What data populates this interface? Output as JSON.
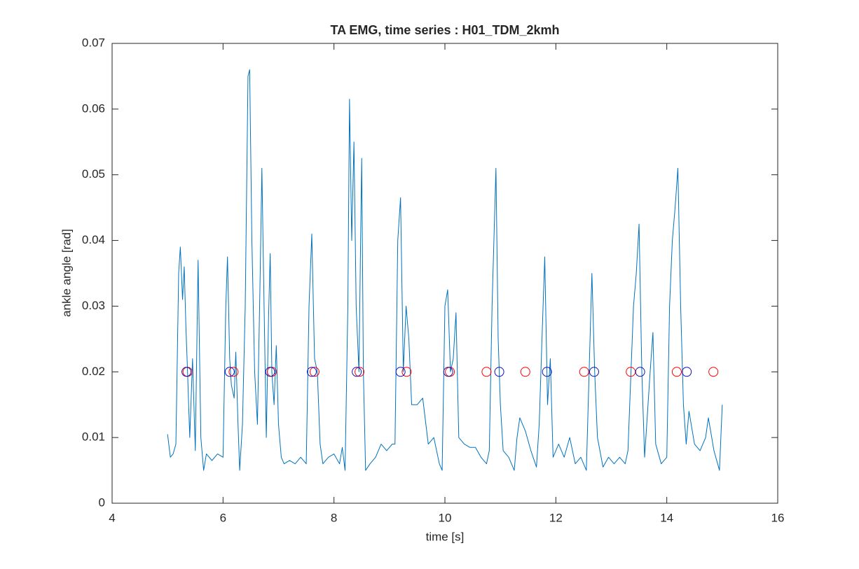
{
  "chart_data": {
    "type": "line",
    "title": "TA EMG, time series : H01_TDM_2kmh",
    "x_label": "time [s]",
    "y_label": "ankle angle [rad]",
    "xlim": [
      4,
      16
    ],
    "xticks": [
      4,
      6,
      8,
      10,
      12,
      14,
      16
    ],
    "ylim": [
      0,
      0.07
    ],
    "yticks": [
      0,
      0.01,
      0.02,
      0.03,
      0.04,
      0.05,
      0.06,
      0.07
    ],
    "grid": false,
    "series": [
      {
        "color": "#0072bd",
        "marker": "none",
        "x": [
          5.0,
          5.05,
          5.1,
          5.15,
          5.2,
          5.23,
          5.27,
          5.3,
          5.33,
          5.36,
          5.4,
          5.45,
          5.5,
          5.55,
          5.6,
          5.65,
          5.7,
          5.8,
          5.9,
          6.0,
          6.05,
          6.08,
          6.12,
          6.15,
          6.2,
          6.23,
          6.27,
          6.3,
          6.35,
          6.4,
          6.45,
          6.48,
          6.52,
          6.57,
          6.62,
          6.67,
          6.7,
          6.74,
          6.78,
          6.82,
          6.85,
          6.88,
          6.92,
          6.96,
          7.0,
          7.05,
          7.1,
          7.2,
          7.3,
          7.4,
          7.5,
          7.55,
          7.6,
          7.65,
          7.7,
          7.75,
          7.8,
          7.9,
          8.0,
          8.1,
          8.15,
          8.2,
          8.25,
          8.28,
          8.32,
          8.36,
          8.4,
          8.45,
          8.48,
          8.5,
          8.53,
          8.57,
          8.65,
          8.75,
          8.85,
          8.95,
          9.05,
          9.1,
          9.15,
          9.2,
          9.25,
          9.3,
          9.35,
          9.4,
          9.5,
          9.6,
          9.7,
          9.8,
          9.9,
          9.95,
          10.0,
          10.05,
          10.1,
          10.15,
          10.2,
          10.25,
          10.35,
          10.45,
          10.55,
          10.65,
          10.75,
          10.8,
          10.85,
          10.9,
          10.92,
          10.96,
          11.0,
          11.05,
          11.15,
          11.25,
          11.3,
          11.35,
          11.45,
          11.55,
          11.65,
          11.7,
          11.75,
          11.8,
          11.85,
          11.9,
          11.95,
          12.05,
          12.15,
          12.25,
          12.35,
          12.45,
          12.55,
          12.6,
          12.65,
          12.7,
          12.75,
          12.85,
          12.95,
          13.05,
          13.15,
          13.25,
          13.3,
          13.4,
          13.45,
          13.5,
          13.55,
          13.6,
          13.7,
          13.75,
          13.8,
          13.9,
          14.0,
          14.05,
          14.1,
          14.15,
          14.2,
          14.25,
          14.3,
          14.35,
          14.4,
          14.5,
          14.6,
          14.7,
          14.75,
          14.85,
          14.95,
          15.0
        ],
        "values": [
          0.0105,
          0.007,
          0.0075,
          0.009,
          0.035,
          0.039,
          0.031,
          0.036,
          0.027,
          0.02,
          0.01,
          0.022,
          0.008,
          0.037,
          0.01,
          0.005,
          0.0075,
          0.0065,
          0.0075,
          0.007,
          0.03,
          0.0375,
          0.022,
          0.018,
          0.016,
          0.023,
          0.012,
          0.005,
          0.012,
          0.03,
          0.065,
          0.066,
          0.04,
          0.02,
          0.012,
          0.035,
          0.051,
          0.03,
          0.01,
          0.028,
          0.038,
          0.02,
          0.015,
          0.024,
          0.012,
          0.007,
          0.006,
          0.0065,
          0.006,
          0.007,
          0.006,
          0.03,
          0.041,
          0.022,
          0.02,
          0.009,
          0.006,
          0.007,
          0.0075,
          0.006,
          0.0085,
          0.005,
          0.03,
          0.0615,
          0.04,
          0.055,
          0.03,
          0.02,
          0.04,
          0.0525,
          0.02,
          0.005,
          0.006,
          0.007,
          0.009,
          0.008,
          0.009,
          0.009,
          0.04,
          0.0465,
          0.02,
          0.03,
          0.025,
          0.015,
          0.015,
          0.016,
          0.009,
          0.01,
          0.006,
          0.005,
          0.03,
          0.0325,
          0.02,
          0.022,
          0.029,
          0.01,
          0.009,
          0.0085,
          0.0085,
          0.007,
          0.006,
          0.008,
          0.03,
          0.045,
          0.051,
          0.025,
          0.015,
          0.008,
          0.007,
          0.005,
          0.01,
          0.013,
          0.011,
          0.008,
          0.0055,
          0.012,
          0.025,
          0.0375,
          0.015,
          0.022,
          0.007,
          0.009,
          0.007,
          0.01,
          0.006,
          0.007,
          0.005,
          0.02,
          0.035,
          0.02,
          0.01,
          0.0055,
          0.007,
          0.006,
          0.007,
          0.006,
          0.008,
          0.03,
          0.035,
          0.0425,
          0.02,
          0.007,
          0.02,
          0.026,
          0.009,
          0.006,
          0.007,
          0.03,
          0.04,
          0.045,
          0.051,
          0.03,
          0.015,
          0.009,
          0.014,
          0.009,
          0.008,
          0.01,
          0.013,
          0.008,
          0.005,
          0.015
        ]
      },
      {
        "color": "#ff0000",
        "marker": "o",
        "x": [
          5.36,
          6.19,
          6.88,
          7.65,
          8.46,
          9.31,
          10.09,
          10.75,
          11.45,
          12.51,
          13.35,
          14.18,
          14.84
        ],
        "values": [
          0.02,
          0.02,
          0.02,
          0.02,
          0.02,
          0.02,
          0.02,
          0.02,
          0.02,
          0.02,
          0.02,
          0.02,
          0.02
        ]
      },
      {
        "color": "#1010c0",
        "marker": "o",
        "x": [
          5.34,
          6.12,
          6.85,
          7.6,
          8.41,
          9.2,
          10.06,
          10.98,
          11.84,
          12.69,
          13.52,
          14.36
        ],
        "values": [
          0.02,
          0.02,
          0.02,
          0.02,
          0.02,
          0.02,
          0.02,
          0.02,
          0.02,
          0.02,
          0.02,
          0.02
        ]
      }
    ]
  }
}
